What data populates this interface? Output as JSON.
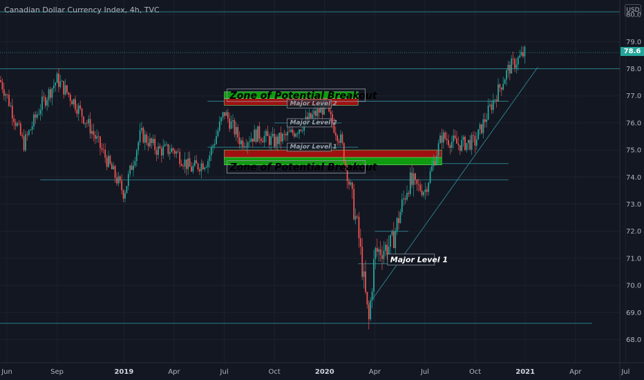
{
  "header": {
    "title": "Canadian Dollar Currency Index, 4h, TVC",
    "currency_button": "USD",
    "last_price": "78.6"
  },
  "colors": {
    "background": "#131722",
    "up": "#26a69a",
    "down": "#ef5350",
    "level_line": "#2a7f8a",
    "zone_green": "#109a10",
    "zone_red": "#a01010"
  },
  "chart_data": {
    "type": "candlestick",
    "y_ticks": [
      "68.0",
      "69.0",
      "70.0",
      "71.0",
      "72.0",
      "73.0",
      "74.0",
      "75.0",
      "76.0",
      "77.0",
      "78.0",
      "79.0",
      "80.0"
    ],
    "x_ticks": [
      {
        "label": "Jun",
        "date": "2018-06",
        "bold": false
      },
      {
        "label": "Sep",
        "date": "2018-09",
        "bold": false
      },
      {
        "label": "2019",
        "date": "2019-01",
        "bold": true
      },
      {
        "label": "Apr",
        "date": "2019-04",
        "bold": false
      },
      {
        "label": "Jul",
        "date": "2019-07",
        "bold": false
      },
      {
        "label": "Oct",
        "date": "2019-10",
        "bold": false
      },
      {
        "label": "2020",
        "date": "2020-01",
        "bold": true
      },
      {
        "label": "Apr",
        "date": "2020-04",
        "bold": false
      },
      {
        "label": "Jul",
        "date": "2020-07",
        "bold": false
      },
      {
        "label": "Oct",
        "date": "2020-10",
        "bold": false
      },
      {
        "label": "2021",
        "date": "2021-01",
        "bold": true
      },
      {
        "label": "Apr",
        "date": "2021-04",
        "bold": false
      },
      {
        "label": "Jul",
        "date": "2021-07",
        "bold": false
      }
    ],
    "ylim": [
      67.6,
      80.2
    ],
    "price_path": [
      [
        "2018-05",
        78.4
      ],
      [
        "2018-06",
        77.0
      ],
      [
        "2018-07",
        75.2
      ],
      [
        "2018-08",
        76.6
      ],
      [
        "2018-09",
        77.6
      ],
      [
        "2018-10",
        76.8
      ],
      [
        "2018-11",
        75.8
      ],
      [
        "2018-12",
        74.6
      ],
      [
        "2019-01",
        73.4
      ],
      [
        "2019-02",
        75.6
      ],
      [
        "2019-03",
        75.0
      ],
      [
        "2019-04",
        75.0
      ],
      [
        "2019-05",
        74.3
      ],
      [
        "2019-06",
        74.6
      ],
      [
        "2019-07",
        76.4
      ],
      [
        "2019-08",
        75.3
      ],
      [
        "2019-09",
        75.6
      ],
      [
        "2019-10",
        75.3
      ],
      [
        "2019-11",
        75.6
      ],
      [
        "2019-12",
        76.1
      ],
      [
        "2020-01",
        76.6
      ],
      [
        "2020-02",
        75.3
      ],
      [
        "2020-03",
        72.0
      ],
      [
        "2020-03-20",
        68.6
      ],
      [
        "2020-04",
        71.2
      ],
      [
        "2020-05",
        71.5
      ],
      [
        "2020-06",
        73.8
      ],
      [
        "2020-07",
        73.5
      ],
      [
        "2020-08",
        75.5
      ],
      [
        "2020-09",
        75.2
      ],
      [
        "2020-10",
        75.3
      ],
      [
        "2020-11",
        76.7
      ],
      [
        "2020-12",
        78.0
      ],
      [
        "2021-01",
        78.6
      ]
    ],
    "horizontal_levels": [
      {
        "y": 80.1,
        "from": "2018-05",
        "to": "2021-07"
      },
      {
        "y": 78.0,
        "from": "2018-05",
        "to": "2021-07"
      },
      {
        "y": 76.8,
        "from": "2019-06",
        "to": "2020-12"
      },
      {
        "y": 76.0,
        "from": "2019-10",
        "to": "2020-02"
      },
      {
        "y": 75.1,
        "from": "2019-06",
        "to": "2020-03"
      },
      {
        "y": 74.5,
        "from": "2020-07",
        "to": "2020-12"
      },
      {
        "y": 73.9,
        "from": "2018-08",
        "to": "2020-12"
      },
      {
        "y": 72.0,
        "from": "2020-04",
        "to": "2020-06"
      },
      {
        "y": 70.8,
        "from": "2020-03",
        "to": "2020-06"
      },
      {
        "y": 68.6,
        "from": "2018-05",
        "to": "2021-05"
      }
    ],
    "trendline": {
      "from": [
        "2020-03-20",
        69.3
      ],
      "to": [
        "2021-01",
        77.8
      ]
    },
    "zones": [
      {
        "from": "2019-07",
        "to": "2020-03",
        "y_low": 76.65,
        "y_high": 77.15,
        "top": "green",
        "bottom": "red",
        "label": "Zone of Potential Breakout",
        "label_at": "top"
      },
      {
        "from": "2019-07",
        "to": "2020-08",
        "y_low": 74.45,
        "y_high": 75.0,
        "top": "red",
        "bottom": "green",
        "label": "Zone of Potential Breakout",
        "label_at": "bottom"
      }
    ],
    "annotations": [
      {
        "text": "Major Level 1",
        "date": "2020-06",
        "y": 70.8
      },
      {
        "text": "Major Level 2",
        "date": "2019-12",
        "y": 75.9
      },
      {
        "text": "Major Level 1",
        "date": "2019-12",
        "y": 75.0
      },
      {
        "text": "Major Level 2",
        "date": "2019-12",
        "y": 76.6
      }
    ]
  }
}
